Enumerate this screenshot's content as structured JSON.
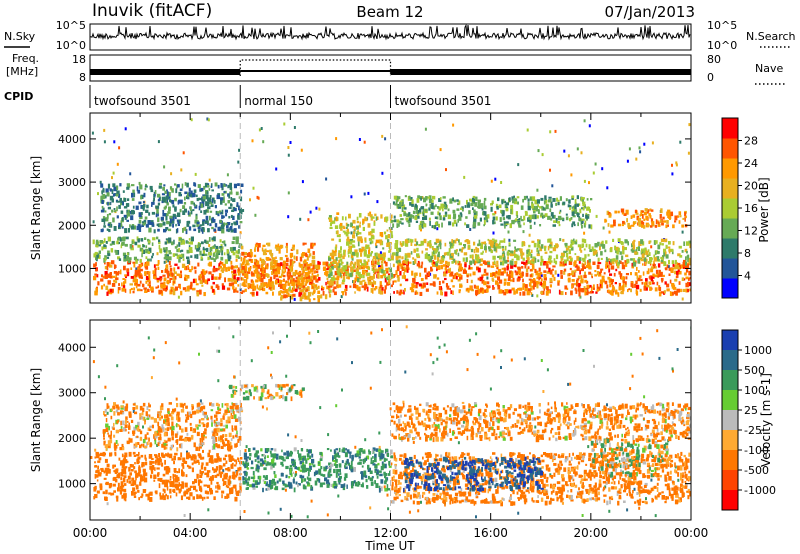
{
  "header": {
    "station": "Inuvik (fitACF)",
    "beam": "Beam 12",
    "date": "07/Jan/2013"
  },
  "left_labels": {
    "nsky": "N.Sky",
    "freq_line1": "Freq.",
    "freq_line2": "[MHz]",
    "cpid": "CPID"
  },
  "right_labels": {
    "nsearch": "N.Search",
    "nave": "Nave"
  },
  "noise_panel": {
    "left_ticks": [
      "10^5",
      "10^0"
    ],
    "right_ticks": [
      "10^5",
      "10^0"
    ]
  },
  "freq_panel": {
    "left_ticks": [
      "18",
      "8"
    ],
    "right_ticks": [
      "80",
      "0"
    ]
  },
  "cpid_segments": [
    {
      "label": "twofsound 3501",
      "start_hour": 0,
      "end_hour": 6
    },
    {
      "label": "normal 150",
      "start_hour": 6,
      "end_hour": 12
    },
    {
      "label": "twofsound 3501",
      "start_hour": 12,
      "end_hour": 24
    }
  ],
  "chart_data": [
    {
      "type": "heatmap",
      "panel": "power",
      "ylabel": "Slant Range [km]",
      "ylim": [
        200,
        4600
      ],
      "yticks": [
        "1000",
        "2000",
        "3000",
        "4000"
      ],
      "xlim": [
        0,
        24
      ],
      "colorbar": {
        "label": "Power [dB]",
        "ticks": [
          "28",
          "24",
          "20",
          "16",
          "12",
          "8",
          "4"
        ],
        "colors": [
          "#ff0000",
          "#ff5500",
          "#ff9900",
          "#e8b020",
          "#aacc33",
          "#66aa55",
          "#2e7a6a",
          "#225599",
          "#0000ff"
        ]
      },
      "bands": [
        {
          "start_hour": 0.1,
          "end_hour": 24,
          "range_low_km": 450,
          "range_high_km": 1200,
          "value": 28
        },
        {
          "start_hour": 0.1,
          "end_hour": 6,
          "range_low_km": 1200,
          "range_high_km": 1750,
          "value": 14
        },
        {
          "start_hour": 6,
          "end_hour": 9,
          "range_low_km": 600,
          "range_high_km": 1600,
          "value": 26
        },
        {
          "start_hour": 9.5,
          "end_hour": 12,
          "range_low_km": 700,
          "range_high_km": 2300,
          "value": 20
        },
        {
          "start_hour": 12,
          "end_hour": 24,
          "range_low_km": 1150,
          "range_high_km": 1700,
          "value": 18
        },
        {
          "start_hour": 12,
          "end_hour": 20,
          "range_low_km": 2000,
          "range_high_km": 2700,
          "value": 14
        },
        {
          "start_hour": 20.5,
          "end_hour": 23.8,
          "range_low_km": 2000,
          "range_high_km": 2400,
          "value": 26
        },
        {
          "start_hour": 0.4,
          "end_hour": 6,
          "range_low_km": 1900,
          "range_high_km": 3000,
          "value": 10
        },
        {
          "start_hour": 7.5,
          "end_hour": 9.6,
          "range_low_km": 300,
          "range_high_km": 600,
          "value": 24
        }
      ]
    },
    {
      "type": "heatmap",
      "panel": "velocity",
      "ylabel": "Slant Range [km]",
      "ylim": [
        200,
        4600
      ],
      "yticks": [
        "1000",
        "2000",
        "3000",
        "4000"
      ],
      "xlim": [
        0,
        24
      ],
      "xticks": [
        "00:00",
        "04:00",
        "08:00",
        "12:00",
        "16:00",
        "20:00",
        "00:00"
      ],
      "xlabel": "Time UT",
      "colorbar": {
        "label": "Velocity [m s-1]",
        "ticks": [
          "1000",
          "500",
          "100",
          "25",
          "-25",
          "-100",
          "-500",
          "-1000"
        ],
        "colors": [
          "#1a3fb0",
          "#2a6a8a",
          "#3a9a5a",
          "#66cc33",
          "#bbbbbb",
          "#ffaa33",
          "#ff7700",
          "#ff4400",
          "#ff0000"
        ]
      },
      "bands": [
        {
          "start_hour": 0.1,
          "end_hour": 6,
          "range_low_km": 700,
          "range_high_km": 1700,
          "value": -300
        },
        {
          "start_hour": 6,
          "end_hour": 12,
          "range_low_km": 900,
          "range_high_km": 1800,
          "value": 200
        },
        {
          "start_hour": 12,
          "end_hour": 24,
          "range_low_km": 600,
          "range_high_km": 1700,
          "value": -200
        },
        {
          "start_hour": 12.5,
          "end_hour": 18,
          "range_low_km": 900,
          "range_high_km": 1600,
          "value": 700
        },
        {
          "start_hour": 0.5,
          "end_hour": 6,
          "range_low_km": 1800,
          "range_high_km": 2800,
          "value": -150
        },
        {
          "start_hour": 5.5,
          "end_hour": 8.5,
          "range_low_km": 2900,
          "range_high_km": 3200,
          "value": 0
        },
        {
          "start_hour": 12,
          "end_hour": 24,
          "range_low_km": 2000,
          "range_high_km": 2800,
          "value": -150
        },
        {
          "start_hour": 20,
          "end_hour": 23,
          "range_low_km": 1200,
          "range_high_km": 2000,
          "value": 0
        }
      ]
    }
  ]
}
